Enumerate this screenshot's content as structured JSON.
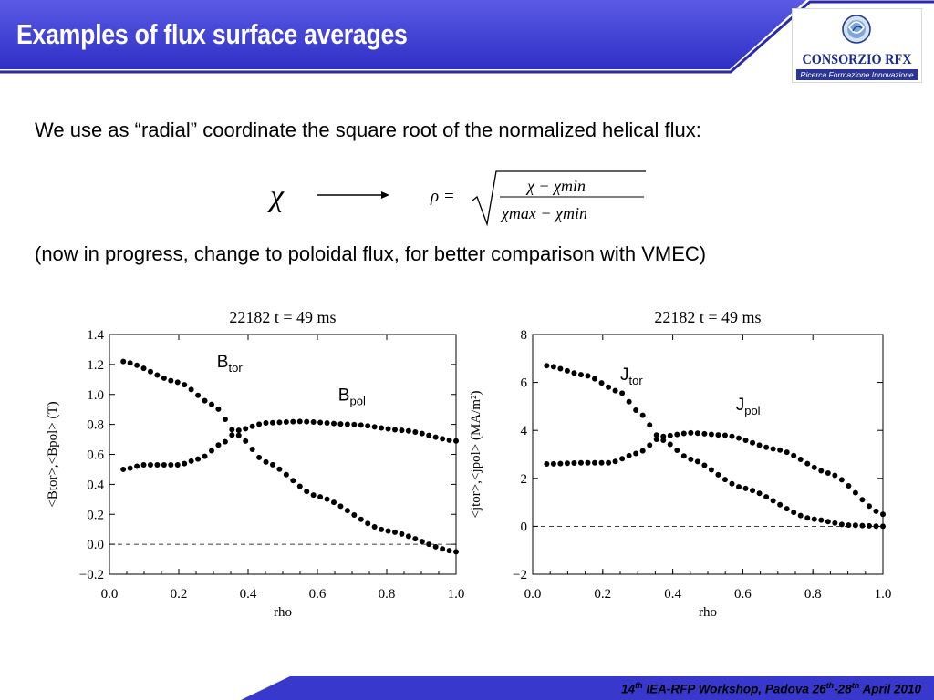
{
  "slide": {
    "title": "Examples of flux surface averages",
    "logo": {
      "name": "CONSORZIO RFX",
      "tagline": "Ricerca Formazione Innovazione"
    },
    "intro_text": "We use as “radial” coordinate the square root of the normalized helical flux:",
    "formula": {
      "lhs": "χ",
      "rho_eq": "ρ =",
      "numerator": "χ − χmin",
      "denominator": "χmax − χmin"
    },
    "progress_note": "(now in progress, change to poloidal flux, for better comparison with VMEC)",
    "footer": {
      "pre": "14",
      "sup1": "th",
      "mid": " IEA-RFP Workshop, Padova 26",
      "sup2": "th",
      "mid2": "-28",
      "sup3": "th",
      "post": " April 2010"
    }
  },
  "colors": {
    "header_blue": "#3333cc",
    "header_dark": "#1a1a99",
    "footer_blue": "#3333cc",
    "dots": "#000000"
  },
  "chart_data": [
    {
      "type": "scatter",
      "title": "22182  t = 49 ms",
      "xlabel": "rho",
      "ylabel": "<Btor>,<Bpol> (T)",
      "xlim": [
        0.0,
        1.0
      ],
      "ylim": [
        -0.2,
        1.4
      ],
      "xticks": [
        "0.0",
        "0.2",
        "0.4",
        "0.6",
        "0.8",
        "1.0"
      ],
      "yticks": [
        "−0.2",
        "0.0",
        "0.2",
        "0.4",
        "0.6",
        "0.8",
        "1.0",
        "1.2",
        "1.4"
      ],
      "zero_line": true,
      "series": [
        {
          "name": "B",
          "sub": "tor",
          "label_at": [
            0.31,
            1.18
          ],
          "x": [
            0.04,
            0.2,
            0.3,
            0.37,
            0.45,
            0.6,
            0.8,
            1.0
          ],
          "y": [
            1.22,
            1.08,
            0.93,
            0.73,
            0.55,
            0.32,
            0.09,
            -0.05
          ]
        },
        {
          "name": "B",
          "sub": "pol",
          "label_at": [
            0.66,
            0.96
          ],
          "x": [
            0.04,
            0.1,
            0.2,
            0.26,
            0.33,
            0.37,
            0.45,
            0.55,
            0.7,
            0.85,
            1.0
          ],
          "y": [
            0.5,
            0.53,
            0.53,
            0.57,
            0.68,
            0.76,
            0.81,
            0.82,
            0.8,
            0.76,
            0.69
          ]
        }
      ]
    },
    {
      "type": "scatter",
      "title": "22182  t = 49 ms",
      "xlabel": "rho",
      "ylabel": "<jtor>,<jpol> (MA/m²)",
      "xlim": [
        0.0,
        1.0
      ],
      "ylim": [
        -2,
        8
      ],
      "xticks": [
        "0.0",
        "0.2",
        "0.4",
        "0.6",
        "0.8",
        "1.0"
      ],
      "yticks": [
        "−2",
        "0",
        "2",
        "4",
        "6",
        "8"
      ],
      "zero_line": true,
      "series": [
        {
          "name": "J",
          "sub": "tor",
          "label_at": [
            0.25,
            6.1
          ],
          "x": [
            0.04,
            0.15,
            0.25,
            0.3,
            0.37,
            0.45,
            0.6,
            0.8,
            0.9,
            1.0
          ],
          "y": [
            6.7,
            6.3,
            5.6,
            4.8,
            3.6,
            2.8,
            1.6,
            0.3,
            0.05,
            0.0
          ]
        },
        {
          "name": "J",
          "sub": "pol",
          "label_at": [
            0.58,
            4.85
          ],
          "x": [
            0.04,
            0.15,
            0.22,
            0.3,
            0.37,
            0.45,
            0.55,
            0.7,
            0.85,
            1.0
          ],
          "y": [
            2.6,
            2.65,
            2.65,
            3.05,
            3.75,
            3.9,
            3.8,
            3.2,
            2.2,
            0.5
          ]
        }
      ]
    }
  ]
}
